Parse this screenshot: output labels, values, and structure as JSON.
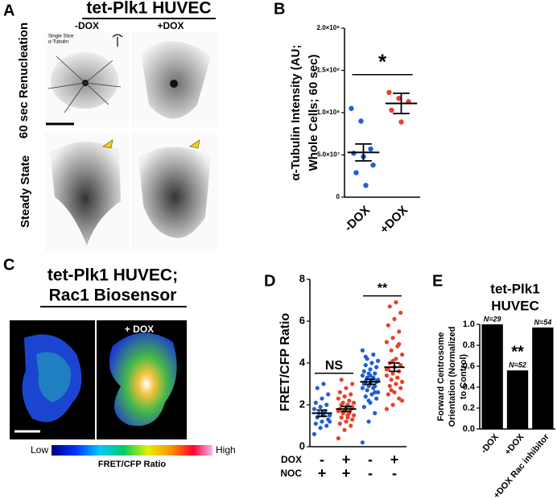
{
  "panel_labels": [
    "A",
    "B",
    "C",
    "D",
    "E"
  ],
  "panel_a": {
    "title": "tet-Plk1 HUVEC",
    "columns": [
      "-DOX",
      "+DOX"
    ],
    "rows": [
      "60 sec Renucleation",
      "Steady State"
    ],
    "inset_label": [
      "Single Slice",
      "α-Tubulin"
    ]
  },
  "panel_c": {
    "title": [
      "tet-Plk1 HUVEC;",
      "Rac1 Biosensor"
    ],
    "condition": "+ DOX",
    "scale_low": "Low",
    "scale_high": "High",
    "scale_label": "FRET/CFP Ratio"
  },
  "chart_data": [
    {
      "type": "scatter",
      "ylabel": [
        "α-Tubulin Intensity (AU;",
        "Whole Cells; 60 sec)"
      ],
      "categories": [
        "-DOX",
        "+DOX"
      ],
      "groups": [
        {
          "color": "#1f5fd6",
          "values": [
            105000000,
            90000000,
            57000000,
            52000000,
            48000000,
            38000000,
            29000000,
            14000000
          ],
          "mean": 53000000,
          "sem": 10000000
        },
        {
          "color": "#e8412c",
          "values": [
            124000000,
            117000000,
            113000000,
            103000000,
            89000000
          ],
          "mean": 111000000,
          "sem": 12000000
        }
      ],
      "ylim": [
        0,
        200000000
      ],
      "yticks": [
        0,
        {
          "value": 50000000,
          "label": "5.0×10⁷"
        },
        {
          "value": 100000000,
          "label": "1.0×10⁸"
        },
        {
          "value": 150000000,
          "label": "1.5×10⁸"
        },
        {
          "value": 200000000,
          "label": "2.0×10⁸"
        }
      ],
      "significance": [
        "*"
      ]
    },
    {
      "type": "scatter",
      "ylabel": [
        "FRET/CFP Ratio"
      ],
      "groups": [
        {
          "color": "#1f5fd6",
          "values": [
            0.6,
            0.9,
            1.0,
            1.1,
            1.2,
            1.3,
            1.4,
            1.5,
            1.5,
            1.6,
            1.7,
            1.8,
            1.9,
            2.0,
            2.1,
            2.3,
            2.5,
            2.8,
            3.0,
            1.2
          ],
          "mean": 1.6,
          "sem": 0.15
        },
        {
          "color": "#e8412c",
          "values": [
            0.4,
            0.8,
            1.0,
            1.1,
            1.2,
            1.3,
            1.4,
            1.4,
            1.5,
            1.6,
            1.6,
            1.7,
            1.7,
            1.8,
            1.8,
            1.9,
            1.9,
            2.0,
            2.0,
            2.1,
            2.1,
            2.2,
            2.3,
            2.4,
            2.5,
            2.6,
            2.8,
            3.0,
            3.2,
            1.5
          ],
          "mean": 1.8,
          "sem": 0.12
        },
        {
          "color": "#1f5fd6",
          "values": [
            0.2,
            1.2,
            1.6,
            1.9,
            2.1,
            2.3,
            2.4,
            2.5,
            2.6,
            2.7,
            2.8,
            2.8,
            2.9,
            2.9,
            3.0,
            3.0,
            3.1,
            3.1,
            3.2,
            3.2,
            3.3,
            3.3,
            3.4,
            3.5,
            3.5,
            3.6,
            3.7,
            3.8,
            3.9,
            4.0,
            4.1,
            4.2,
            4.4,
            4.6,
            2.2,
            2.6,
            3.0,
            3.4,
            3.8,
            4.3
          ],
          "mean": 3.1,
          "sem": 0.12
        },
        {
          "color": "#e8412c",
          "values": [
            1.8,
            2.0,
            2.3,
            2.5,
            2.6,
            2.8,
            2.9,
            3.0,
            3.1,
            3.2,
            3.3,
            3.4,
            3.5,
            3.6,
            3.7,
            3.8,
            3.9,
            4.0,
            4.2,
            4.4,
            4.6,
            4.8,
            5.0,
            5.2,
            5.5,
            5.8,
            6.1,
            6.4,
            6.7,
            6.9,
            2.2,
            2.7,
            3.3,
            3.7,
            4.1,
            4.9
          ],
          "mean": 3.8,
          "sem": 0.2
        }
      ],
      "condition_rows": [
        {
          "name": "DOX",
          "signs": [
            "-",
            "+",
            "-",
            "+"
          ]
        },
        {
          "name": "NOC",
          "signs": [
            "+",
            "+",
            "-",
            "-"
          ]
        }
      ],
      "ylim": [
        0,
        8
      ],
      "yticks": [
        0,
        2,
        4,
        6,
        8
      ],
      "significance": [
        "NS",
        "**"
      ]
    },
    {
      "type": "bar",
      "title": [
        "tet-Plk1",
        "HUVEC"
      ],
      "ylabel": [
        "Forward Centrosome",
        "Orientation (Normalized",
        "to Control)"
      ],
      "categories": [
        "-DOX",
        "+DOX",
        "+DOX Rac inhibitor"
      ],
      "values": [
        1.0,
        0.56,
        0.97
      ],
      "color": "#000000",
      "n_labels": [
        "N=29",
        "N=52",
        "N=54"
      ],
      "ylim": [
        0,
        1.0
      ],
      "yticks": [
        {
          "value": 0,
          "label": "0.0"
        },
        {
          "value": 0.2,
          "label": "0.2"
        },
        {
          "value": 0.4,
          "label": "0.4"
        },
        {
          "value": 0.6,
          "label": "0.6"
        },
        {
          "value": 0.8,
          "label": "0.8"
        },
        {
          "value": 1.0,
          "label": "1.0"
        }
      ],
      "significance": [
        "**"
      ]
    }
  ]
}
